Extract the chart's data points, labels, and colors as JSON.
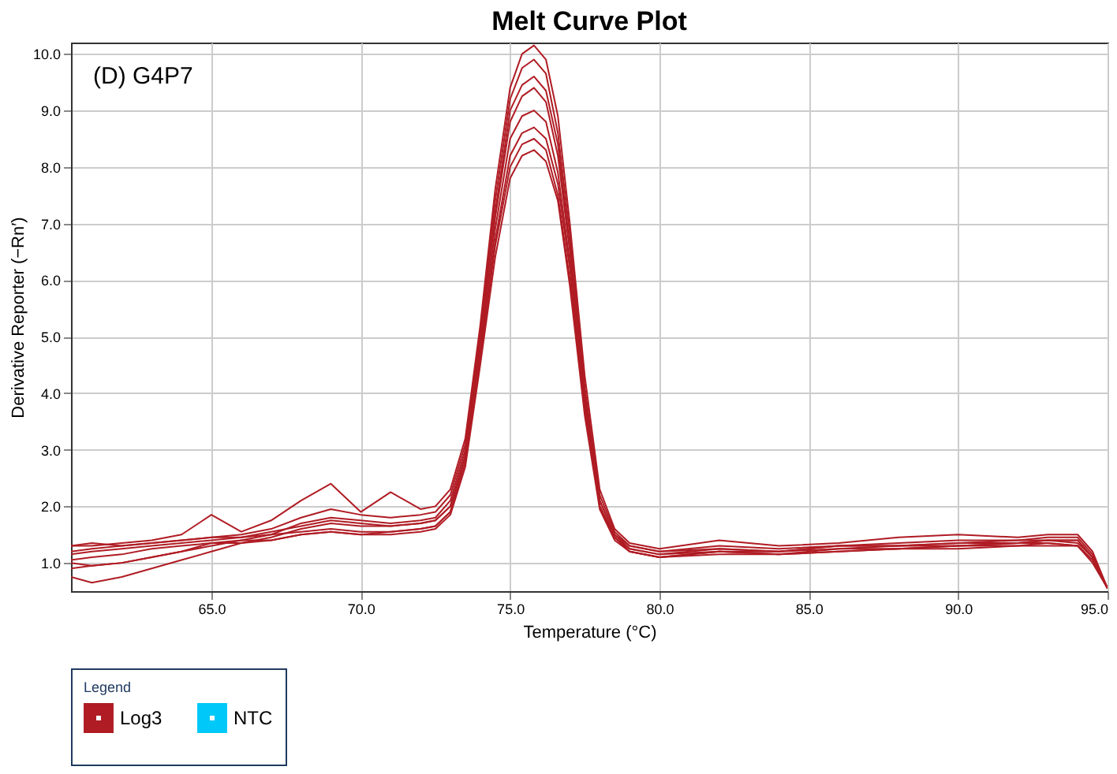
{
  "chart_data": {
    "type": "line",
    "title": "Melt Curve Plot",
    "xlabel": "Temperature (°C)",
    "ylabel": "Derivative Reporter (−Rn′)",
    "annotations": [
      "(D) G4P7"
    ],
    "x": [
      60.3,
      61,
      62,
      63,
      64,
      65,
      66,
      67,
      68,
      69,
      70,
      71,
      72,
      72.5,
      73,
      73.5,
      74,
      74.5,
      75,
      75.4,
      75.8,
      76.2,
      76.6,
      77,
      77.5,
      78,
      78.5,
      79,
      80,
      82,
      84,
      86,
      88,
      90,
      92,
      93,
      94,
      94.5,
      95
    ],
    "series": [
      {
        "name": "Log3",
        "color": "#b01c24",
        "values": [
          1.3,
          1.3,
          1.35,
          1.4,
          1.5,
          1.85,
          1.55,
          1.75,
          2.1,
          2.4,
          1.9,
          2.25,
          1.95,
          2.0,
          2.3,
          3.2,
          5.2,
          7.6,
          9.4,
          10.0,
          10.15,
          9.9,
          8.9,
          7.0,
          4.3,
          2.3,
          1.6,
          1.35,
          1.25,
          1.4,
          1.3,
          1.35,
          1.45,
          1.5,
          1.45,
          1.5,
          1.5,
          1.2,
          0.55
        ]
      },
      {
        "color": "#b01c24",
        "values": [
          1.2,
          1.25,
          1.3,
          1.35,
          1.4,
          1.45,
          1.5,
          1.6,
          1.8,
          1.95,
          1.85,
          1.8,
          1.85,
          1.9,
          2.2,
          3.1,
          5.1,
          7.4,
          9.2,
          9.75,
          9.9,
          9.65,
          8.6,
          6.8,
          4.1,
          2.2,
          1.55,
          1.3,
          1.2,
          1.3,
          1.25,
          1.3,
          1.35,
          1.4,
          1.4,
          1.45,
          1.45,
          1.15,
          0.55
        ]
      },
      {
        "color": "#b01c24",
        "values": [
          1.0,
          0.95,
          1.0,
          1.1,
          1.2,
          1.3,
          1.4,
          1.5,
          1.7,
          1.8,
          1.75,
          1.7,
          1.75,
          1.8,
          2.1,
          3.0,
          5.0,
          7.2,
          9.0,
          9.45,
          9.6,
          9.35,
          8.4,
          6.6,
          4.0,
          2.1,
          1.5,
          1.3,
          1.2,
          1.25,
          1.2,
          1.3,
          1.3,
          1.35,
          1.35,
          1.4,
          1.4,
          1.1,
          0.55
        ]
      },
      {
        "color": "#b01c24",
        "values": [
          0.75,
          0.65,
          0.75,
          0.9,
          1.05,
          1.2,
          1.35,
          1.45,
          1.6,
          1.7,
          1.65,
          1.65,
          1.7,
          1.75,
          2.0,
          2.9,
          4.9,
          7.1,
          8.8,
          9.25,
          9.4,
          9.15,
          8.2,
          6.5,
          3.9,
          2.1,
          1.5,
          1.25,
          1.15,
          1.2,
          1.2,
          1.25,
          1.3,
          1.3,
          1.35,
          1.4,
          1.35,
          1.1,
          0.55
        ]
      },
      {
        "color": "#b01c24",
        "values": [
          1.15,
          1.2,
          1.25,
          1.3,
          1.35,
          1.4,
          1.45,
          1.55,
          1.65,
          1.75,
          1.7,
          1.65,
          1.7,
          1.75,
          2.0,
          2.9,
          4.8,
          6.9,
          8.5,
          8.9,
          9.0,
          8.8,
          7.9,
          6.3,
          3.8,
          2.0,
          1.45,
          1.25,
          1.15,
          1.25,
          1.2,
          1.3,
          1.3,
          1.35,
          1.4,
          1.4,
          1.4,
          1.1,
          0.55
        ]
      },
      {
        "color": "#b01c24",
        "values": [
          0.9,
          0.95,
          1.0,
          1.1,
          1.2,
          1.35,
          1.4,
          1.4,
          1.5,
          1.55,
          1.5,
          1.55,
          1.6,
          1.65,
          1.9,
          2.8,
          4.7,
          6.7,
          8.2,
          8.6,
          8.7,
          8.5,
          7.7,
          6.2,
          3.8,
          2.0,
          1.45,
          1.2,
          1.1,
          1.2,
          1.15,
          1.25,
          1.25,
          1.3,
          1.35,
          1.35,
          1.3,
          1.05,
          0.55
        ]
      },
      {
        "color": "#b01c24",
        "values": [
          1.3,
          1.35,
          1.3,
          1.35,
          1.4,
          1.45,
          1.45,
          1.5,
          1.55,
          1.6,
          1.55,
          1.55,
          1.6,
          1.65,
          1.9,
          2.8,
          4.6,
          6.6,
          8.0,
          8.4,
          8.5,
          8.3,
          7.5,
          6.0,
          3.7,
          2.0,
          1.45,
          1.2,
          1.1,
          1.2,
          1.15,
          1.2,
          1.25,
          1.3,
          1.3,
          1.35,
          1.3,
          1.05,
          0.55
        ]
      },
      {
        "color": "#b01c24",
        "values": [
          1.05,
          1.1,
          1.15,
          1.25,
          1.3,
          1.35,
          1.35,
          1.4,
          1.5,
          1.55,
          1.5,
          1.5,
          1.55,
          1.6,
          1.85,
          2.7,
          4.5,
          6.4,
          7.8,
          8.2,
          8.3,
          8.1,
          7.4,
          5.9,
          3.6,
          1.95,
          1.4,
          1.2,
          1.1,
          1.15,
          1.15,
          1.2,
          1.25,
          1.25,
          1.3,
          1.3,
          1.3,
          1.0,
          0.55
        ]
      },
      {
        "name": "NTC",
        "color": "#00c8f8",
        "values": [
          null,
          null,
          null,
          null,
          null,
          null,
          null,
          null,
          null,
          null,
          null,
          null,
          null,
          null,
          null,
          null,
          null,
          null,
          null,
          null,
          null,
          null,
          null,
          null,
          null,
          null,
          null,
          null,
          null,
          null,
          null,
          null,
          null,
          null,
          null,
          null,
          null,
          null,
          null
        ]
      }
    ],
    "xlim": [
      60.3,
      95
    ],
    "ylim": [
      0.5,
      10.2
    ],
    "xticks": [
      {
        "value": 65,
        "label": "65.0"
      },
      {
        "value": 70,
        "label": "70.0"
      },
      {
        "value": 75,
        "label": "75.0"
      },
      {
        "value": 80,
        "label": "80.0"
      },
      {
        "value": 85,
        "label": "85.0"
      },
      {
        "value": 90,
        "label": "90.0"
      },
      {
        "value": 95,
        "label": "95.0"
      }
    ],
    "yticks": [
      {
        "value": 1,
        "label": "1.0"
      },
      {
        "value": 2,
        "label": "2.0"
      },
      {
        "value": 3,
        "label": "3.0"
      },
      {
        "value": 4,
        "label": "4.0"
      },
      {
        "value": 5,
        "label": "5.0"
      },
      {
        "value": 6,
        "label": "6.0"
      },
      {
        "value": 7,
        "label": "7.0"
      },
      {
        "value": 8,
        "label": "8.0"
      },
      {
        "value": 9,
        "label": "9.0"
      },
      {
        "value": 10,
        "label": "10.0"
      }
    ],
    "grid": true,
    "legend": "bottom",
    "legend_title": "Legend",
    "marker": "none",
    "line_style": "solid"
  }
}
